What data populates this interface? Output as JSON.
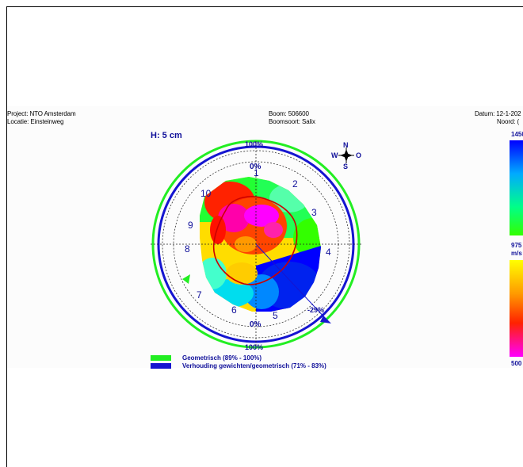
{
  "header": {
    "project": "Project: NTO Amsterdam",
    "locatie": "Locatie: Einsteinweg",
    "boom": "Boom: 506600",
    "boomsoort": "Boomsoort: Salix",
    "datum": "Datum: 12-1-202",
    "noord": "Noord: ("
  },
  "height_label": "H: 5 cm",
  "compass": {
    "n": "N",
    "w": "W",
    "o": "O",
    "s": "S"
  },
  "ring_labels": {
    "top_outer": "100%",
    "top_inner": "0%",
    "bottom_inner": "0%",
    "bottom_outer": "100%",
    "deviation": "-29%"
  },
  "sensor_numbers": [
    "1",
    "2",
    "3",
    "4",
    "5",
    "6",
    "7",
    "8",
    "9",
    "10"
  ],
  "legend": {
    "items": [
      {
        "label": "Geometrisch (89% - 100%)",
        "color": "#22ee22"
      },
      {
        "label": "Verhouding gewichten/geometrisch (71% - 83%)",
        "color": "#1515d0"
      }
    ]
  },
  "color_scale": {
    "top_max": "1450",
    "mid": "975",
    "unit": "m/s",
    "bottom_min": "500",
    "colors": {
      "upper": [
        "#0000ff",
        "#00aaff",
        "#00ff88",
        "#33ff00"
      ],
      "lower": [
        "#ffff00",
        "#ff9900",
        "#ff2200",
        "#ff00ff"
      ]
    }
  }
}
